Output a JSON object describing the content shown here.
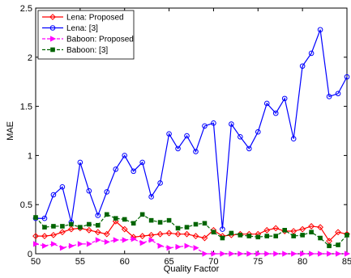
{
  "chart_data": {
    "type": "line",
    "xlabel": "Quality Factor",
    "ylabel": "MAE",
    "xlim": [
      50,
      85
    ],
    "ylim": [
      0,
      2.5
    ],
    "xticks": [
      50,
      55,
      60,
      65,
      70,
      75,
      80,
      85
    ],
    "yticks": [
      0,
      0.5,
      1,
      1.5,
      2,
      2.5
    ],
    "xtick_labels": [
      "50",
      "55",
      "60",
      "65",
      "70",
      "75",
      "80",
      "85"
    ],
    "ytick_labels": [
      "0",
      "0.5",
      "1",
      "1.5",
      "2",
      "2.5"
    ],
    "grid": false,
    "legend_position": "top-left",
    "x": [
      50,
      51,
      52,
      53,
      54,
      55,
      56,
      57,
      58,
      59,
      60,
      61,
      62,
      63,
      64,
      65,
      66,
      67,
      68,
      69,
      70,
      71,
      72,
      73,
      74,
      75,
      76,
      77,
      78,
      79,
      80,
      81,
      82,
      83,
      84,
      85
    ],
    "series": [
      {
        "name": "Lena: Proposed",
        "color": "#ff0000",
        "dash": "solid",
        "marker": "diamond",
        "values": [
          0.18,
          0.18,
          0.19,
          0.22,
          0.25,
          0.26,
          0.24,
          0.22,
          0.2,
          0.33,
          0.25,
          0.17,
          0.18,
          0.19,
          0.2,
          0.21,
          0.2,
          0.2,
          0.18,
          0.16,
          0.24,
          0.18,
          0.19,
          0.2,
          0.2,
          0.2,
          0.24,
          0.26,
          0.23,
          0.23,
          0.25,
          0.28,
          0.27,
          0.13,
          0.22,
          0.2
        ]
      },
      {
        "name": "Lena: [3]",
        "color": "#0000ff",
        "dash": "solid",
        "marker": "circle",
        "values": [
          0.36,
          0.36,
          0.6,
          0.68,
          0.32,
          0.93,
          0.64,
          0.39,
          0.63,
          0.86,
          1.0,
          0.84,
          0.93,
          0.58,
          0.72,
          1.22,
          1.07,
          1.2,
          1.04,
          1.3,
          1.33,
          0.25,
          1.32,
          1.19,
          1.07,
          1.24,
          1.53,
          1.43,
          1.58,
          1.17,
          1.91,
          2.04,
          2.28,
          1.6,
          1.63,
          1.8
        ]
      },
      {
        "name": "Baboon: Proposed",
        "color": "#ff00ff",
        "dash": "dashed",
        "marker": "triangle",
        "values": [
          0.1,
          0.08,
          0.1,
          0.06,
          0.08,
          0.1,
          0.1,
          0.14,
          0.12,
          0.14,
          0.14,
          0.15,
          0.11,
          0.14,
          0.08,
          0.06,
          0.07,
          0.08,
          0.06,
          0.0,
          0.0,
          0.0,
          0.0,
          0.0,
          0.0,
          0.0,
          0.0,
          0.0,
          0.0,
          0.0,
          0.0,
          0.0,
          0.0,
          0.0,
          0.0,
          0.0
        ]
      },
      {
        "name": "Baboon: [3]",
        "color": "#006400",
        "dash": "dashed",
        "marker": "square",
        "values": [
          0.37,
          0.27,
          0.28,
          0.28,
          0.3,
          0.27,
          0.3,
          0.29,
          0.4,
          0.36,
          0.35,
          0.31,
          0.4,
          0.34,
          0.32,
          0.34,
          0.26,
          0.27,
          0.3,
          0.31,
          0.22,
          0.16,
          0.21,
          0.19,
          0.18,
          0.17,
          0.18,
          0.18,
          0.24,
          0.18,
          0.19,
          0.22,
          0.16,
          0.08,
          0.09,
          0.19
        ]
      }
    ]
  }
}
